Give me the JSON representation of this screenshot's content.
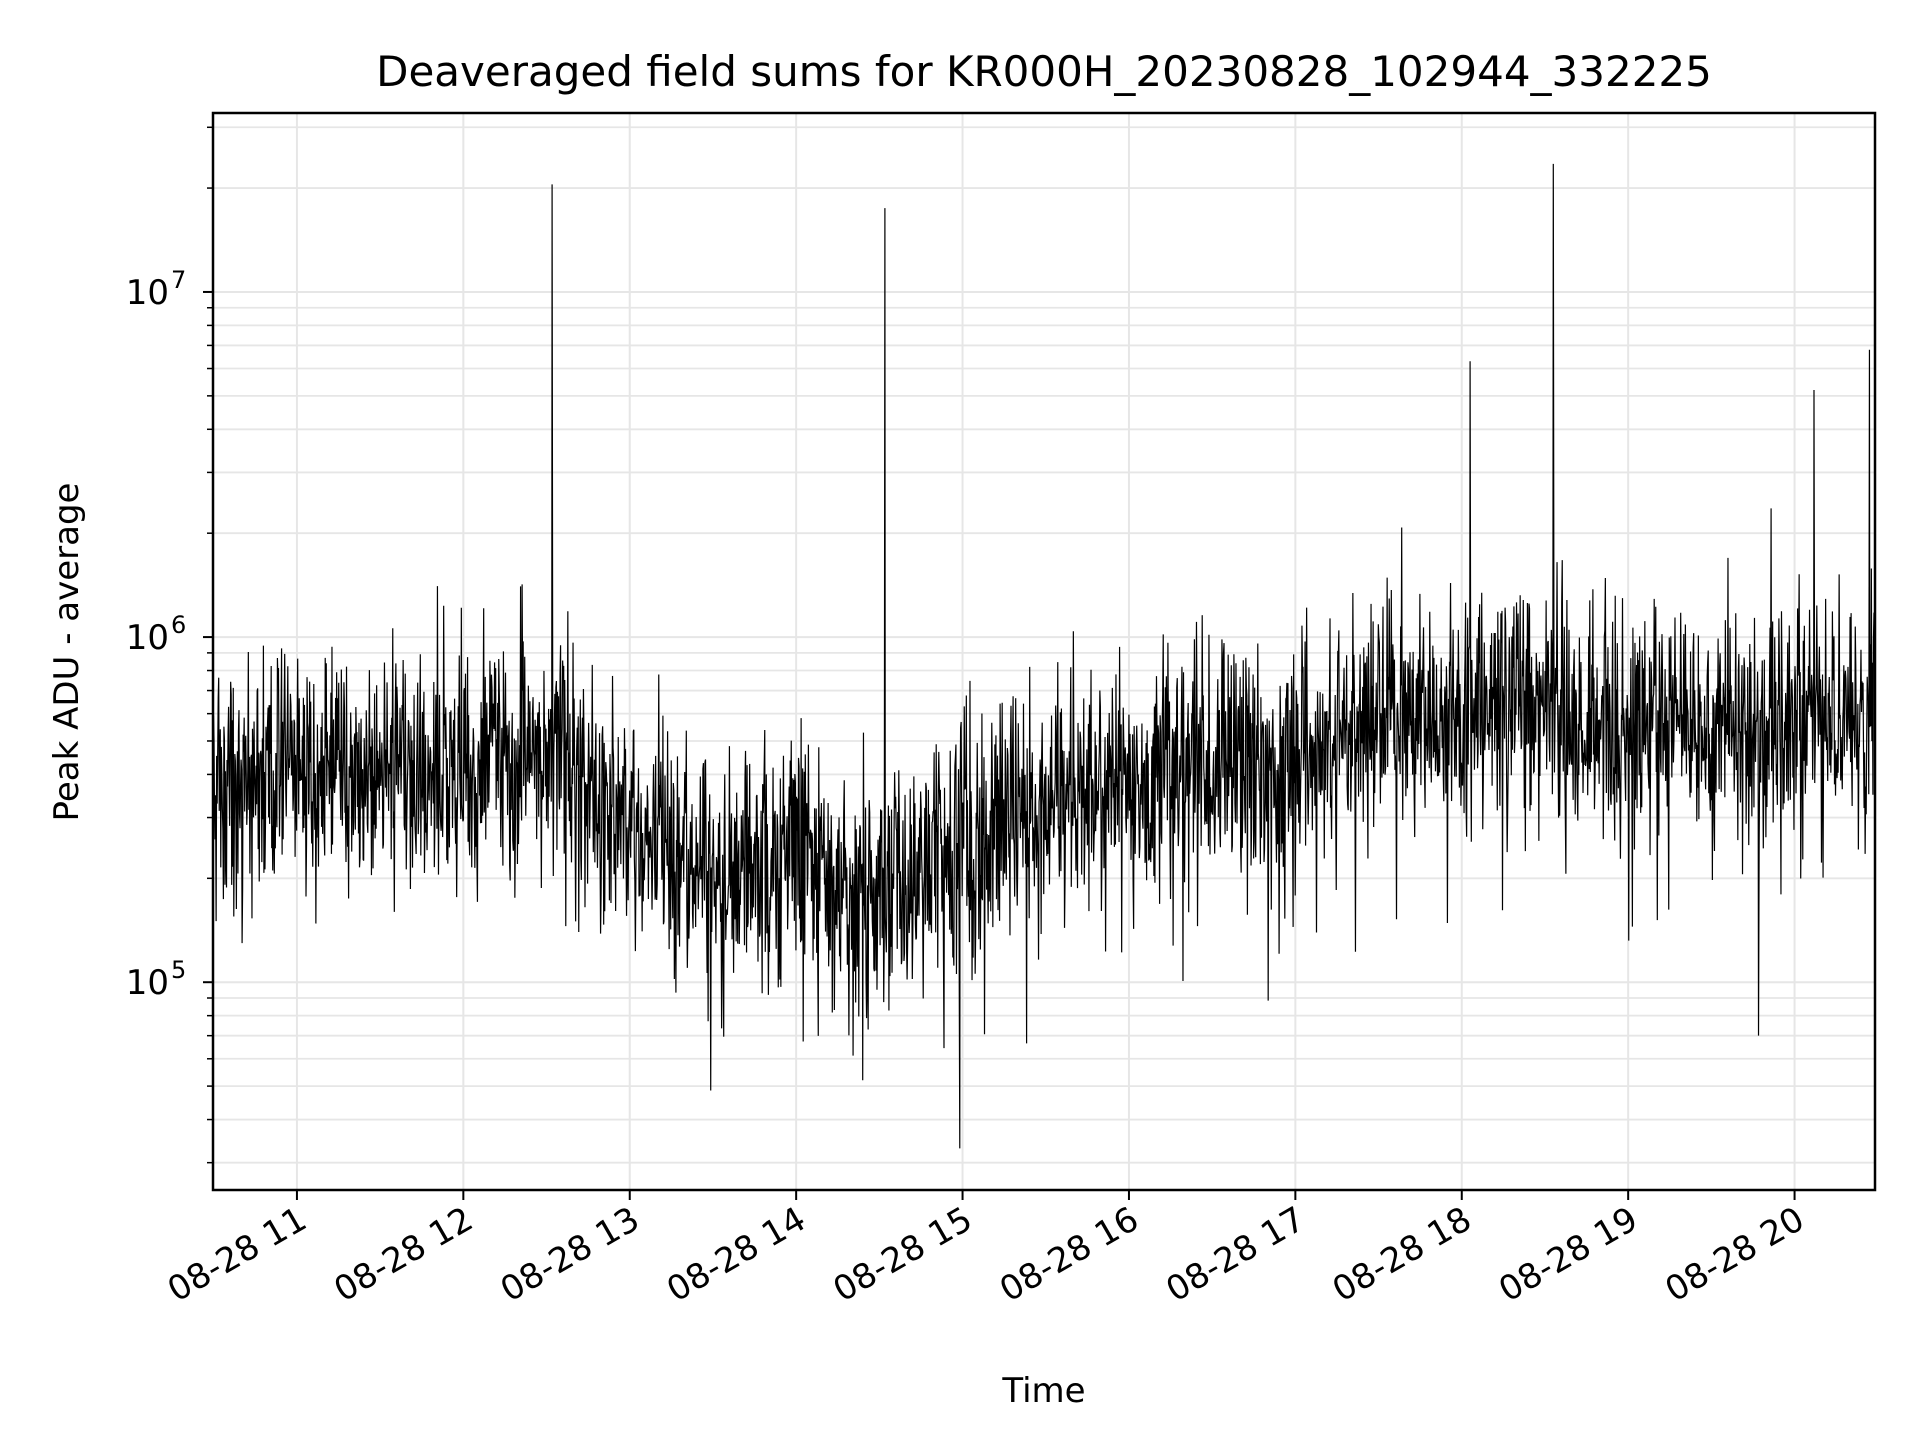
{
  "chart_data": {
    "type": "line",
    "title": "Deaveraged field sums for KR000H_20230828_102944_332225",
    "xlabel": "Time",
    "ylabel": "Peak ADU - average",
    "xscale": "time",
    "yscale": "log",
    "xlim": [
      "2023-08-28 10:29:44",
      "2023-08-28 20:29:00"
    ],
    "ylim": [
      25000,
      33000000
    ],
    "grid": true,
    "legend": "none",
    "line_color": "#000000",
    "x_ticks": [
      {
        "t": "2023-08-28 11:00",
        "label": "08-28 11"
      },
      {
        "t": "2023-08-28 12:00",
        "label": "08-28 12"
      },
      {
        "t": "2023-08-28 13:00",
        "label": "08-28 13"
      },
      {
        "t": "2023-08-28 14:00",
        "label": "08-28 14"
      },
      {
        "t": "2023-08-28 15:00",
        "label": "08-28 15"
      },
      {
        "t": "2023-08-28 16:00",
        "label": "08-28 16"
      },
      {
        "t": "2023-08-28 17:00",
        "label": "08-28 17"
      },
      {
        "t": "2023-08-28 18:00",
        "label": "08-28 18"
      },
      {
        "t": "2023-08-28 19:00",
        "label": "08-28 19"
      },
      {
        "t": "2023-08-28 20:00",
        "label": "08-28 20"
      }
    ],
    "y_ticks": [
      {
        "value": 100000,
        "base": "10",
        "exp": "5"
      },
      {
        "value": 1000000,
        "base": "10",
        "exp": "6"
      },
      {
        "value": 10000000,
        "base": "10",
        "exp": "7"
      }
    ],
    "trend": [
      {
        "t": "2023-08-28 10:30",
        "y": 380000
      },
      {
        "t": "2023-08-28 11:00",
        "y": 420000
      },
      {
        "t": "2023-08-28 11:30",
        "y": 380000
      },
      {
        "t": "2023-08-28 12:00",
        "y": 420000
      },
      {
        "t": "2023-08-28 12:30",
        "y": 480000
      },
      {
        "t": "2023-08-28 13:00",
        "y": 300000
      },
      {
        "t": "2023-08-28 13:30",
        "y": 200000
      },
      {
        "t": "2023-08-28 14:00",
        "y": 220000
      },
      {
        "t": "2023-08-28 14:30",
        "y": 180000
      },
      {
        "t": "2023-08-28 15:00",
        "y": 270000
      },
      {
        "t": "2023-08-28 15:30",
        "y": 340000
      },
      {
        "t": "2023-08-28 16:00",
        "y": 400000
      },
      {
        "t": "2023-08-28 16:30",
        "y": 420000
      },
      {
        "t": "2023-08-28 17:00",
        "y": 440000
      },
      {
        "t": "2023-08-28 17:30",
        "y": 560000
      },
      {
        "t": "2023-08-28 18:00",
        "y": 650000
      },
      {
        "t": "2023-08-28 18:30",
        "y": 620000
      },
      {
        "t": "2023-08-28 19:00",
        "y": 560000
      },
      {
        "t": "2023-08-28 19:30",
        "y": 540000
      },
      {
        "t": "2023-08-28 20:00",
        "y": 560000
      },
      {
        "t": "2023-08-28 20:29",
        "y": 560000
      }
    ],
    "spikes": [
      {
        "t": "2023-08-28 12:32",
        "y": 20500000
      },
      {
        "t": "2023-08-28 14:32",
        "y": 17500000
      },
      {
        "t": "2023-08-28 18:03",
        "y": 6300000
      },
      {
        "t": "2023-08-28 18:33",
        "y": 23500000
      },
      {
        "t": "2023-08-28 20:07",
        "y": 5200000
      },
      {
        "t": "2023-08-28 20:27",
        "y": 6800000
      }
    ],
    "dips": [
      {
        "t": "2023-08-28 14:59",
        "y": 33000
      },
      {
        "t": "2023-08-28 14:24",
        "y": 52000
      },
      {
        "t": "2023-08-28 19:47",
        "y": 70000
      }
    ]
  }
}
